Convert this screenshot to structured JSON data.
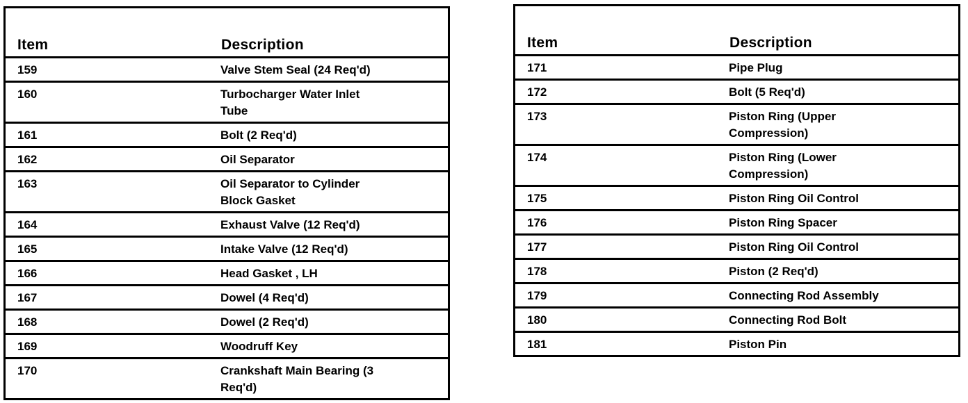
{
  "left_table": {
    "header": {
      "item": "Item",
      "description": "Description"
    },
    "rows": [
      {
        "item": "159",
        "description": "Valve Stem Seal  (24 Req'd)"
      },
      {
        "item": "160",
        "description": "Turbocharger Water Inlet\nTube"
      },
      {
        "item": "161",
        "description": "Bolt (2 Req'd)"
      },
      {
        "item": "162",
        "description": "Oil Separator"
      },
      {
        "item": "163",
        "description": "Oil Separator to Cylinder\nBlock Gasket"
      },
      {
        "item": "164",
        "description": "Exhaust Valve  (12 Req'd)"
      },
      {
        "item": "165",
        "description": "Intake Valve  (12 Req'd)"
      },
      {
        "item": "166",
        "description": "Head Gasket , LH"
      },
      {
        "item": "167",
        "description": "Dowel (4 Req'd)"
      },
      {
        "item": "168",
        "description": "Dowel (2 Req'd)"
      },
      {
        "item": "169",
        "description": "Woodruff Key"
      },
      {
        "item": "170",
        "description": "Crankshaft Main Bearing  (3\nReq'd)"
      }
    ]
  },
  "right_table": {
    "header": {
      "item": "Item",
      "description": "Description"
    },
    "rows": [
      {
        "item": "171",
        "description": "Pipe Plug"
      },
      {
        "item": "172",
        "description": "Bolt (5 Req'd)"
      },
      {
        "item": "173",
        "description": "Piston Ring (Upper\nCompression)"
      },
      {
        "item": "174",
        "description": "Piston Ring (Lower\nCompression)"
      },
      {
        "item": "175",
        "description": "Piston Ring Oil Control"
      },
      {
        "item": "176",
        "description": "Piston Ring Spacer"
      },
      {
        "item": "177",
        "description": "Piston Ring Oil Control"
      },
      {
        "item": "178",
        "description": "Piston (2 Req'd)"
      },
      {
        "item": "179",
        "description": "Connecting Rod Assembly"
      },
      {
        "item": "180",
        "description": "Connecting Rod Bolt"
      },
      {
        "item": "181",
        "description": "Piston Pin"
      }
    ]
  }
}
